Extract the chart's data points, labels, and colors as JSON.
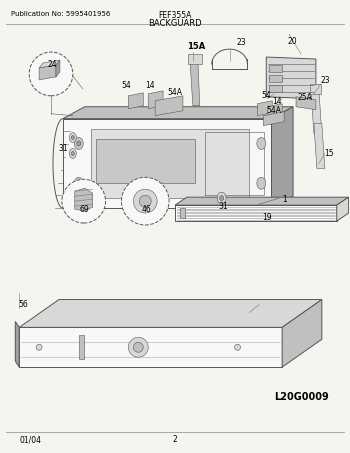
{
  "title_left": "Publication No: 5995401956",
  "title_center": "FEF355A",
  "section_title": "BACKGUARD",
  "image_label": "L20G0009",
  "footer_left": "01/04",
  "footer_center": "2",
  "bg_color": "#f5f5f0",
  "border_color": "#000000",
  "text_color": "#000000",
  "draw_color": "#555555",
  "fig_width": 3.5,
  "fig_height": 4.53,
  "dpi": 100
}
